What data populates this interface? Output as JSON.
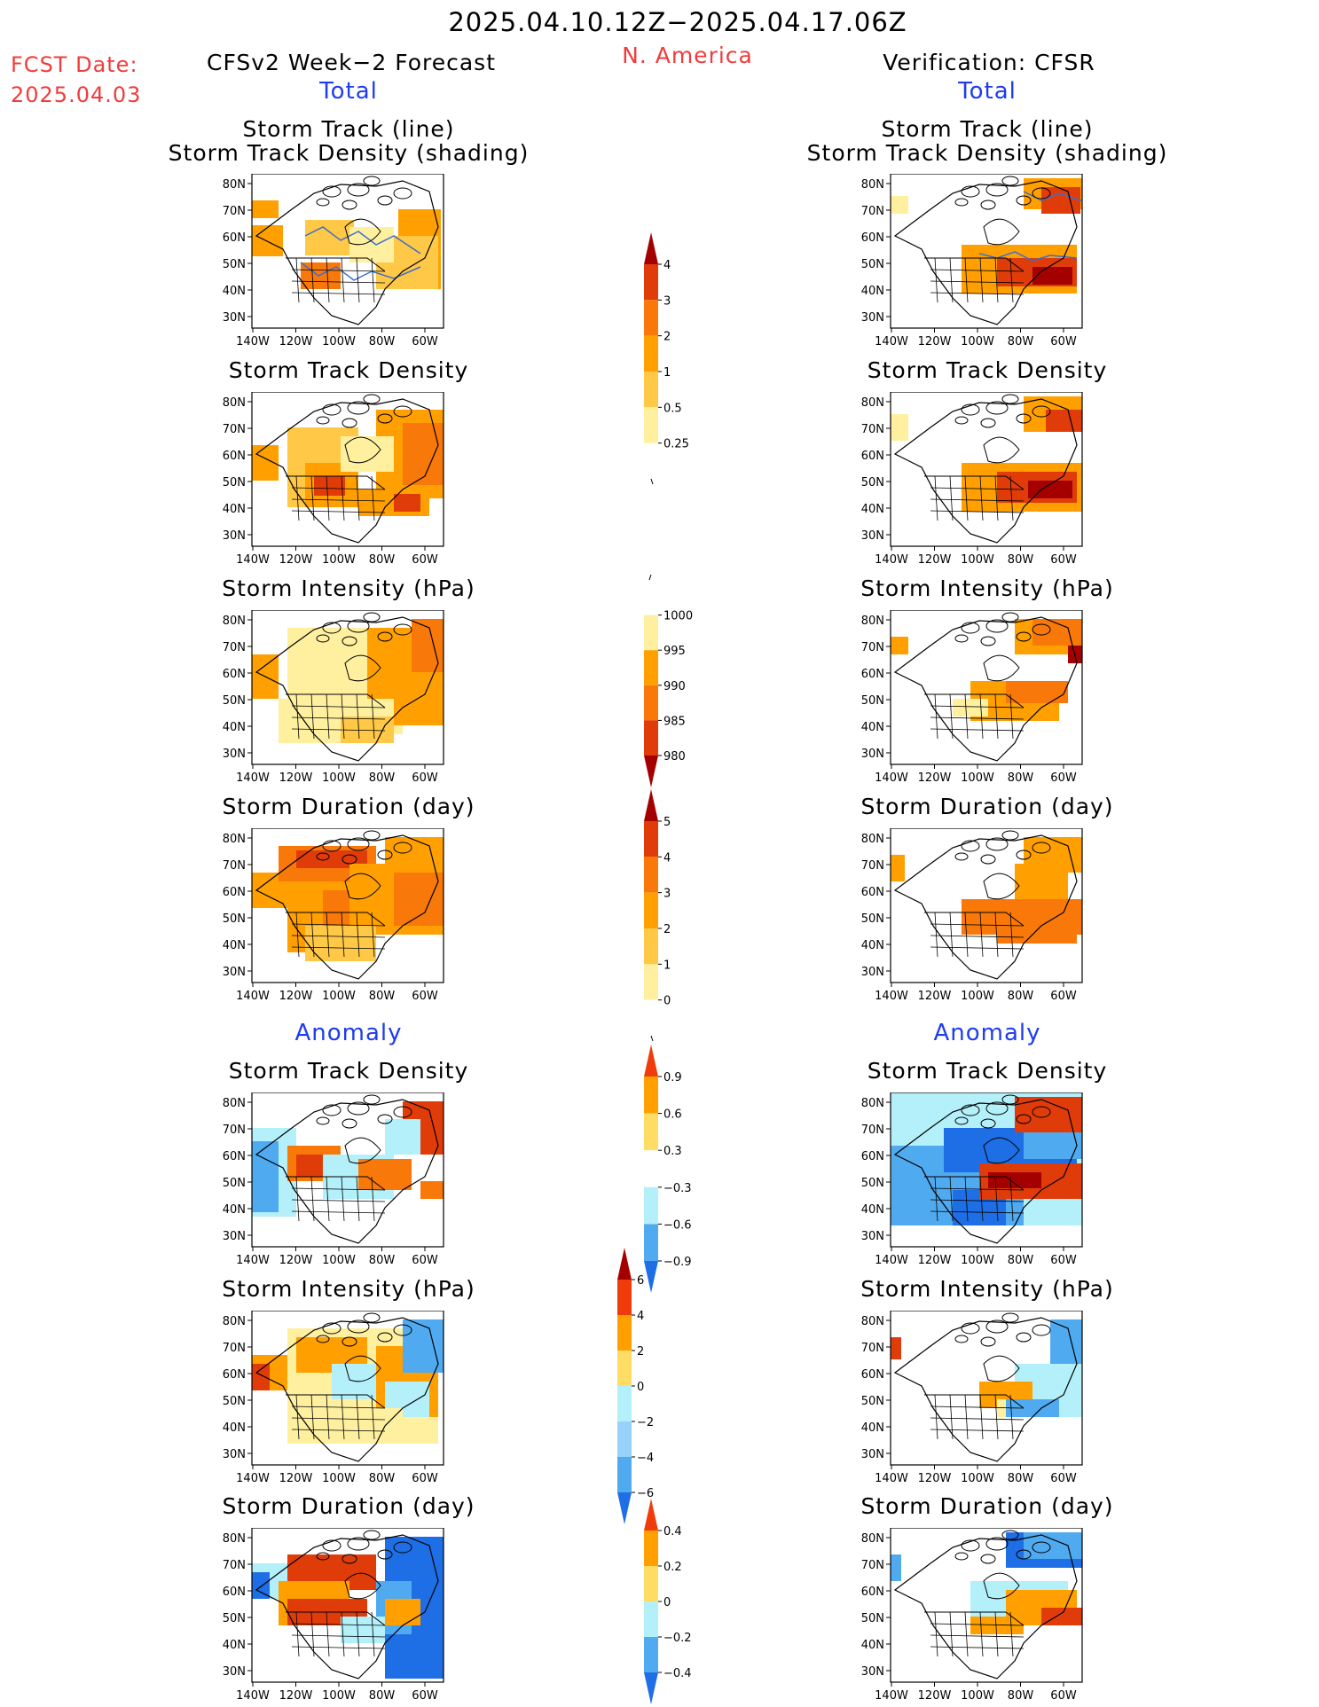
{
  "header": {
    "title": "2025.04.10.12Z−2025.04.17.06Z",
    "fcst_label": "FCST Date:",
    "fcst_date": "2025.04.03",
    "region": "N. America",
    "left_heading": "CFSv2 Week−2 Forecast",
    "right_heading": "Verification: CFSR"
  },
  "sections": {
    "total": "Total",
    "anomaly": "Anomaly"
  },
  "panels": [
    {
      "title1": "Storm Track (line)",
      "title2": "Storm Track Density (shading)"
    },
    {
      "title1": "Storm Track Density",
      "title2": ""
    },
    {
      "title1": "Storm Intensity (hPa)",
      "title2": ""
    },
    {
      "title1": "Storm Duration (day)",
      "title2": ""
    },
    {
      "title1": "Storm Track Density",
      "title2": ""
    },
    {
      "title1": "Storm Intensity (hPa)",
      "title2": ""
    },
    {
      "title1": "Storm Duration (day)",
      "title2": ""
    }
  ],
  "map_axes": {
    "lat_labels": [
      "80N",
      "70N",
      "60N",
      "50N",
      "40N",
      "30N"
    ],
    "lon_labels": [
      "140W",
      "120W",
      "100W",
      "80W",
      "60W"
    ]
  },
  "colorbars": [
    {
      "id": "density",
      "labels": [
        "4",
        "3",
        "2",
        "1",
        "0.5",
        "0.25"
      ],
      "colors": [
        "#a50000",
        "#e03c0a",
        "#f8780a",
        "#ffa000",
        "#ffc846",
        "#fff0a0",
        "#ffffff"
      ]
    },
    {
      "id": "intensity",
      "labels": [
        "1000",
        "995",
        "990",
        "985",
        "980"
      ],
      "colors": [
        "#ffffff",
        "#fff0a0",
        "#ffa000",
        "#f8780a",
        "#e03c0a",
        "#a50000"
      ]
    },
    {
      "id": "duration",
      "labels": [
        "5",
        "4",
        "3",
        "2",
        "1",
        "0"
      ],
      "colors": [
        "#a50000",
        "#e03c0a",
        "#f8780a",
        "#ffa000",
        "#ffc846",
        "#fff0a0",
        "#ffffff"
      ]
    },
    {
      "id": "density_anom",
      "labels": [
        "0.9",
        "0.6",
        "0.3",
        "−0.3",
        "−0.6",
        "−0.9"
      ],
      "colors": [
        "#f03c0a",
        "#ffa000",
        "#ffdc64",
        "#ffffff",
        "#b4f0fa",
        "#50aaf0",
        "#1e6ee6"
      ]
    },
    {
      "id": "intensity_anom",
      "labels": [
        "6",
        "4",
        "2",
        "0",
        "−2",
        "−4",
        "−6"
      ],
      "colors": [
        "#a50000",
        "#f03c0a",
        "#ffa000",
        "#ffdc64",
        "#b4f0fa",
        "#96d2fa",
        "#50aaf0",
        "#1e6ee6"
      ]
    },
    {
      "id": "duration_anom",
      "labels": [
        "0.4",
        "0.2",
        "0",
        "−0.2",
        "−0.4"
      ],
      "colors": [
        "#f03c0a",
        "#ffa000",
        "#ffdc64",
        "#b4f0fa",
        "#50aaf0",
        "#1e6ee6"
      ]
    }
  ],
  "colors": {
    "red_text": "#f03c3c",
    "blue_text": "#1e3cf0"
  }
}
